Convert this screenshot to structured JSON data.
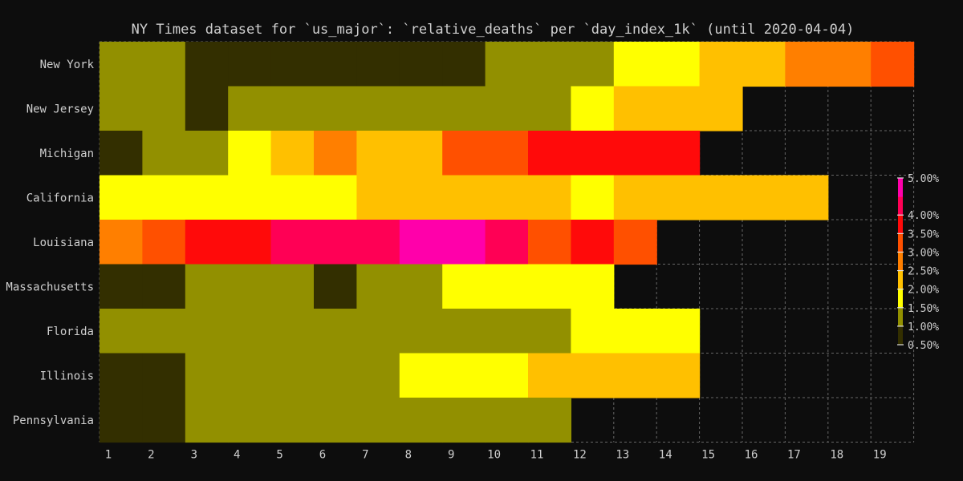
{
  "chart_data": {
    "type": "heatmap",
    "title": "NY Times dataset for `us_major`: `relative_deaths` per `day_index_1k` (until 2020-04-04)",
    "xlabel": "",
    "ylabel": "",
    "x": [
      "1",
      "2",
      "3",
      "4",
      "5",
      "6",
      "7",
      "8",
      "9",
      "10",
      "11",
      "12",
      "13",
      "14",
      "15",
      "16",
      "17",
      "18",
      "19"
    ],
    "rows": [
      "New York",
      "New Jersey",
      "Michigan",
      "California",
      "Louisiana",
      "Massachusetts",
      "Florida",
      "Illinois",
      "Pennsylvania"
    ],
    "values": [
      [
        1.25,
        1.25,
        0.75,
        0.75,
        0.75,
        0.75,
        0.75,
        0.75,
        0.75,
        1.25,
        1.25,
        1.25,
        1.75,
        1.75,
        2.25,
        2.25,
        2.75,
        2.75,
        3.25
      ],
      [
        1.25,
        1.25,
        0.75,
        1.25,
        1.25,
        1.25,
        1.25,
        1.25,
        1.25,
        1.25,
        1.25,
        1.75,
        2.25,
        2.25,
        2.25,
        null,
        null,
        null,
        null
      ],
      [
        0.75,
        1.25,
        1.25,
        1.75,
        2.25,
        2.75,
        2.25,
        2.25,
        3.25,
        3.25,
        3.75,
        3.75,
        3.75,
        3.75,
        null,
        null,
        null,
        null,
        null
      ],
      [
        1.75,
        1.75,
        1.75,
        1.75,
        1.75,
        1.75,
        2.25,
        2.25,
        2.25,
        2.25,
        2.25,
        1.75,
        2.25,
        2.25,
        2.25,
        2.25,
        2.25,
        null,
        null
      ],
      [
        2.75,
        3.25,
        3.75,
        3.75,
        4.25,
        4.25,
        4.25,
        4.75,
        4.75,
        4.25,
        3.25,
        3.75,
        3.25,
        null,
        null,
        null,
        null,
        null,
        null
      ],
      [
        0.75,
        0.75,
        1.25,
        1.25,
        1.25,
        0.75,
        1.25,
        1.25,
        1.75,
        1.75,
        1.75,
        1.75,
        null,
        null,
        null,
        null,
        null,
        null,
        null
      ],
      [
        1.25,
        1.25,
        1.25,
        1.25,
        1.25,
        1.25,
        1.25,
        1.25,
        1.25,
        1.25,
        1.25,
        1.75,
        1.75,
        1.75,
        null,
        null,
        null,
        null,
        null
      ],
      [
        0.75,
        0.75,
        1.25,
        1.25,
        1.25,
        1.25,
        1.25,
        1.75,
        1.75,
        1.75,
        2.25,
        2.25,
        2.25,
        2.25,
        null,
        null,
        null,
        null,
        null
      ],
      [
        0.75,
        0.75,
        1.25,
        1.25,
        1.25,
        1.25,
        1.25,
        1.25,
        1.25,
        1.25,
        1.25,
        null,
        null,
        null,
        null,
        null,
        null,
        null,
        null
      ]
    ],
    "colorbar": {
      "range": [
        0.5,
        5.0
      ],
      "ticks": [
        "0.50%",
        "1.00%",
        "1.50%",
        "2.00%",
        "2.50%",
        "3.00%",
        "3.50%",
        "4.00%",
        "5.00%"
      ],
      "tick_values": [
        0.5,
        1.0,
        1.5,
        2.0,
        2.5,
        3.0,
        3.5,
        4.0,
        5.0
      ],
      "bins": [
        {
          "min": 0.5,
          "max": 1.0,
          "color": "#332f00"
        },
        {
          "min": 1.0,
          "max": 1.5,
          "color": "#929000"
        },
        {
          "min": 1.5,
          "max": 2.0,
          "color": "#ffff00"
        },
        {
          "min": 2.0,
          "max": 2.5,
          "color": "#ffc000"
        },
        {
          "min": 2.5,
          "max": 3.0,
          "color": "#ff7f00"
        },
        {
          "min": 3.0,
          "max": 3.5,
          "color": "#ff5000"
        },
        {
          "min": 3.5,
          "max": 4.0,
          "color": "#ff0a0a"
        },
        {
          "min": 4.0,
          "max": 4.5,
          "color": "#ff0055"
        },
        {
          "min": 4.5,
          "max": 5.0,
          "color": "#ff00aa"
        }
      ]
    },
    "grid": true,
    "legend": "right",
    "colors": {
      "background": "#0d0d0d",
      "text": "#cfcfcf",
      "grid": "#666666",
      "empty": "#0d0d0d"
    }
  }
}
